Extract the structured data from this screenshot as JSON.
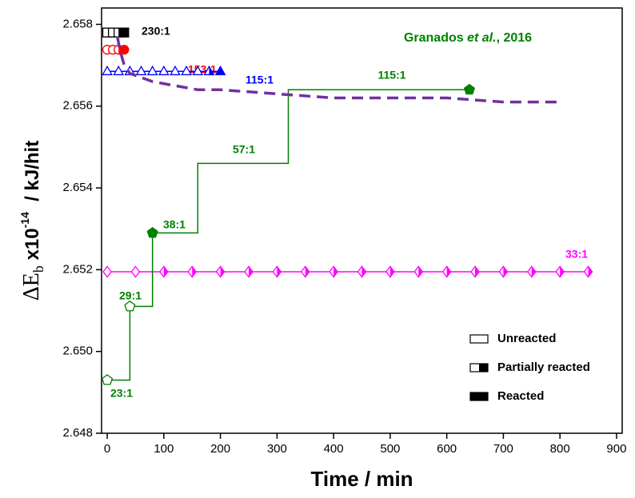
{
  "chart_data": {
    "type": "scatter",
    "xlabel": "Time / min",
    "ylabel": {
      "delta": "ΔE",
      "sub": "b",
      "mult": " x10",
      "exp": "-14",
      "unit": "  / kJ/hit"
    },
    "annotation": {
      "parts": [
        "Granados ",
        "et al.",
        ", 2016"
      ],
      "color": "#008000"
    },
    "xlim": [
      -10,
      910
    ],
    "ylim": [
      2.648,
      2.6584
    ],
    "xticks": [
      0,
      100,
      200,
      300,
      400,
      500,
      600,
      700,
      800,
      900
    ],
    "yticks": [
      2.648,
      {
        "value": 2.65,
        "label": "2.650"
      },
      2.652,
      2.654,
      2.656,
      2.658
    ],
    "series": [
      {
        "name": "230:1",
        "color": "#000000",
        "marker": "square",
        "line": false,
        "x": [
          0,
          10,
          20,
          30
        ],
        "values": [
          2.6578,
          2.6578,
          2.6578,
          2.6578
        ],
        "marker_fills": [
          "open",
          "open",
          "half",
          "full"
        ]
      },
      {
        "name": "153:1",
        "color": "#ff0000",
        "marker": "circle",
        "line": false,
        "x": [
          0,
          10,
          20,
          30
        ],
        "values": [
          2.65738,
          2.65738,
          2.65738,
          2.65738
        ],
        "marker_fills": [
          "open",
          "open",
          "half",
          "full"
        ]
      },
      {
        "name": "115:1",
        "color": "#0000ff",
        "marker": "triangle",
        "line": true,
        "x": [
          0,
          20,
          40,
          60,
          80,
          100,
          120,
          140,
          160,
          180,
          200
        ],
        "values": [
          2.65685,
          2.65685,
          2.65685,
          2.65685,
          2.65685,
          2.65685,
          2.65685,
          2.65685,
          2.65685,
          2.65685,
          2.65685
        ],
        "marker_fills": [
          "open",
          "open",
          "open",
          "open",
          "open",
          "open",
          "open",
          "open",
          "open",
          "half",
          "full"
        ]
      },
      {
        "name": "33:1",
        "color": "#ff00ff",
        "marker": "diamond",
        "line": true,
        "x": [
          0,
          50,
          100,
          150,
          200,
          250,
          300,
          350,
          400,
          450,
          500,
          550,
          600,
          650,
          700,
          750,
          800,
          850
        ],
        "values": [
          2.65195,
          2.65195,
          2.65195,
          2.65195,
          2.65195,
          2.65195,
          2.65195,
          2.65195,
          2.65195,
          2.65195,
          2.65195,
          2.65195,
          2.65195,
          2.65195,
          2.65195,
          2.65195,
          2.65195,
          2.65195
        ],
        "marker_fills": [
          "open",
          "open",
          "half",
          "half",
          "half",
          "half",
          "half",
          "half",
          "half",
          "half",
          "half",
          "half",
          "half",
          "half",
          "half",
          "half",
          "half",
          "half"
        ]
      }
    ],
    "steps": {
      "color": "#008000",
      "marker": "pentagon",
      "x": [
        0,
        40,
        80,
        160,
        320,
        640
      ],
      "values": [
        2.6493,
        2.6511,
        2.6529,
        2.6546,
        2.6564,
        2.6564
      ],
      "marker_fills": [
        "open",
        "open",
        "full",
        "none",
        "none",
        "full"
      ],
      "labels": [
        "23:1",
        "29:1",
        "38:1",
        "57:1",
        "115:1"
      ]
    },
    "fit": {
      "color": "#7030a0",
      "dashed": true,
      "x": [
        18,
        22,
        26,
        30,
        40,
        60,
        80,
        120,
        160,
        200,
        300,
        400,
        500,
        600,
        700,
        800
      ],
      "values": [
        2.6577,
        2.6574,
        2.6572,
        2.657,
        2.6568,
        2.6567,
        2.6566,
        2.6565,
        2.6564,
        2.6564,
        2.6563,
        2.6562,
        2.6562,
        2.6562,
        2.6561,
        2.6561
      ]
    },
    "legend": {
      "position": "lower right",
      "items": [
        {
          "label": "Unreacted",
          "fill": "open"
        },
        {
          "label": "Partially reacted",
          "fill": "half"
        },
        {
          "label": "Reacted",
          "fill": "full"
        }
      ]
    }
  }
}
